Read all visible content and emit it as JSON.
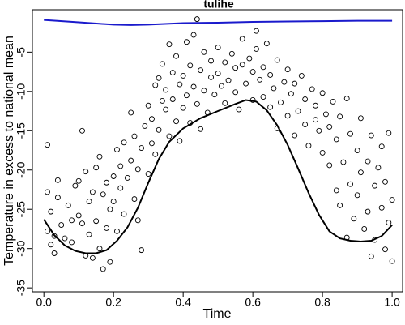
{
  "chart_data": {
    "type": "scatter",
    "title": "tulihe",
    "xlabel": "Time",
    "ylabel": "Temperature in excess to national mean",
    "xlim": [
      -0.033,
      1.03
    ],
    "ylim": [
      -35.5,
      0.4
    ],
    "xticks": [
      {
        "value": 0,
        "label": "0.0"
      },
      0.2,
      0.4,
      0.6,
      0.8,
      {
        "value": 1,
        "label": "1.0"
      }
    ],
    "yticks": [
      -35,
      -30,
      -25,
      -20,
      -15,
      -10,
      -5
    ],
    "series": [
      {
        "type": "scatter",
        "color": "#000000",
        "x": [
          0.01,
          0.01,
          0.01,
          0.02,
          0.02,
          0.03,
          0.03,
          0.04,
          0.04,
          0.05,
          0.06,
          0.07,
          0.08,
          0.08,
          0.09,
          0.1,
          0.1,
          0.11,
          0.11,
          0.12,
          0.12,
          0.13,
          0.13,
          0.14,
          0.14,
          0.15,
          0.15,
          0.16,
          0.16,
          0.17,
          0.17,
          0.18,
          0.18,
          0.19,
          0.19,
          0.2,
          0.2,
          0.21,
          0.21,
          0.22,
          0.22,
          0.23,
          0.23,
          0.24,
          0.25,
          0.25,
          0.26,
          0.26,
          0.27,
          0.27,
          0.28,
          0.28,
          0.29,
          0.3,
          0.3,
          0.31,
          0.31,
          0.32,
          0.32,
          0.33,
          0.33,
          0.34,
          0.34,
          0.35,
          0.35,
          0.36,
          0.36,
          0.37,
          0.37,
          0.38,
          0.38,
          0.39,
          0.39,
          0.4,
          0.4,
          0.41,
          0.41,
          0.42,
          0.42,
          0.43,
          0.43,
          0.44,
          0.44,
          0.45,
          0.45,
          0.46,
          0.46,
          0.47,
          0.48,
          0.48,
          0.49,
          0.5,
          0.5,
          0.51,
          0.52,
          0.52,
          0.53,
          0.54,
          0.55,
          0.55,
          0.56,
          0.57,
          0.57,
          0.58,
          0.59,
          0.6,
          0.6,
          0.61,
          0.61,
          0.62,
          0.63,
          0.63,
          0.64,
          0.65,
          0.65,
          0.66,
          0.67,
          0.67,
          0.68,
          0.69,
          0.7,
          0.7,
          0.71,
          0.72,
          0.72,
          0.73,
          0.74,
          0.75,
          0.75,
          0.76,
          0.77,
          0.78,
          0.78,
          0.79,
          0.8,
          0.8,
          0.81,
          0.82,
          0.82,
          0.83,
          0.84,
          0.84,
          0.85,
          0.85,
          0.86,
          0.87,
          0.87,
          0.88,
          0.88,
          0.89,
          0.9,
          0.9,
          0.91,
          0.91,
          0.92,
          0.93,
          0.93,
          0.94,
          0.94,
          0.95,
          0.95,
          0.96,
          0.97,
          0.97,
          0.98,
          0.98,
          0.99,
          0.99,
          1.0,
          1.0
        ],
        "values": [
          -16.8,
          -22.8,
          -27.8,
          -29.5,
          -25.3,
          -30.6,
          -28.4,
          -21.3,
          -23.5,
          -27,
          -28.7,
          -24.5,
          -26.4,
          -29.2,
          -22,
          -21.4,
          -25.8,
          -15,
          -26.8,
          -20.2,
          -30.9,
          -24,
          -28.2,
          -22.8,
          -31.2,
          -19.7,
          -26.5,
          -18.3,
          -30,
          -23.1,
          -32.6,
          -27.4,
          -21.6,
          -25,
          -31.7,
          -20.8,
          -24,
          -17.4,
          -27.8,
          -22.3,
          -19.5,
          -25.6,
          -16.5,
          -21,
          -12.7,
          -18.8,
          -23.7,
          -15.7,
          -26.4,
          -19.9,
          -30.2,
          -17.2,
          -14.4,
          -20.5,
          -11.8,
          -13.5,
          -16.6,
          -9.2,
          -18,
          -8.3,
          -14.9,
          -11.2,
          -6.5,
          -12.3,
          -9.8,
          -4,
          -15.7,
          -7.6,
          -11,
          -13.8,
          -5.5,
          -9.1,
          -16.3,
          -8,
          -12.1,
          -3.7,
          -10.5,
          -6.7,
          -14,
          -9.4,
          -2.8,
          -0.8,
          -11.6,
          -7.3,
          -14.8,
          -5,
          -9.9,
          -12.7,
          -8.2,
          -6.1,
          -10.4,
          -7.7,
          -4.4,
          -9.3,
          -6.3,
          -11.5,
          -8.6,
          -5.2,
          -10.1,
          -7,
          -12.3,
          -6.6,
          -3.3,
          -9,
          -5.8,
          -11.1,
          -7.5,
          -2.3,
          -4.6,
          -8.5,
          -6.9,
          -10.7,
          -3.9,
          -7.9,
          -12,
          -9.6,
          -6,
          -14.7,
          -11.4,
          -8.8,
          -13.1,
          -7.2,
          -10.3,
          -15.6,
          -9,
          -12.5,
          -8,
          -14.2,
          -11,
          -16.9,
          -9.7,
          -13.6,
          -11.8,
          -15,
          -10.2,
          -17.8,
          -12.9,
          -19.4,
          -14.5,
          -11.3,
          -22.6,
          -16.1,
          -13.2,
          -24.5,
          -19,
          -10.9,
          -28.6,
          -21.8,
          -15.4,
          -26.2,
          -17.5,
          -23.2,
          -13.4,
          -20.3,
          -27.5,
          -18.9,
          -25.3,
          -15.6,
          -31,
          -22,
          -28.9,
          -19.7,
          -24.8,
          -17,
          -30.1,
          -21.5,
          -15.3,
          -26.7,
          -31.6,
          -23.8
        ]
      },
      {
        "type": "line",
        "color": "#000000",
        "x": [
          0,
          0.03,
          0.06,
          0.09,
          0.12,
          0.15,
          0.18,
          0.21,
          0.24,
          0.27,
          0.3,
          0.33,
          0.36,
          0.4,
          0.45,
          0.5,
          0.55,
          0.58,
          0.61,
          0.64,
          0.67,
          0.7,
          0.73,
          0.76,
          0.79,
          0.82,
          0.85,
          0.88,
          0.91,
          0.94,
          0.97,
          1.0
        ],
        "values": [
          -26.3,
          -28.3,
          -29.6,
          -30.3,
          -30.6,
          -30.6,
          -30.2,
          -29,
          -27.3,
          -24.8,
          -21.6,
          -18.6,
          -16.4,
          -14.7,
          -13.4,
          -12.5,
          -11.6,
          -11.1,
          -11.3,
          -12.4,
          -14.3,
          -16.8,
          -19.8,
          -22.9,
          -25.7,
          -27.8,
          -28.7,
          -29,
          -29.1,
          -29,
          -28.4,
          -27
        ]
      },
      {
        "type": "line",
        "color": "#1a1acc",
        "x": [
          0,
          0.1,
          0.2,
          0.25,
          0.3,
          0.4,
          0.5,
          0.6,
          0.7,
          0.8,
          0.9,
          1.0
        ],
        "values": [
          -0.9,
          -1.2,
          -1.5,
          -1.55,
          -1.5,
          -1.3,
          -1.25,
          -1.15,
          -1.1,
          -1.05,
          -1.0,
          -1.0
        ]
      }
    ]
  }
}
